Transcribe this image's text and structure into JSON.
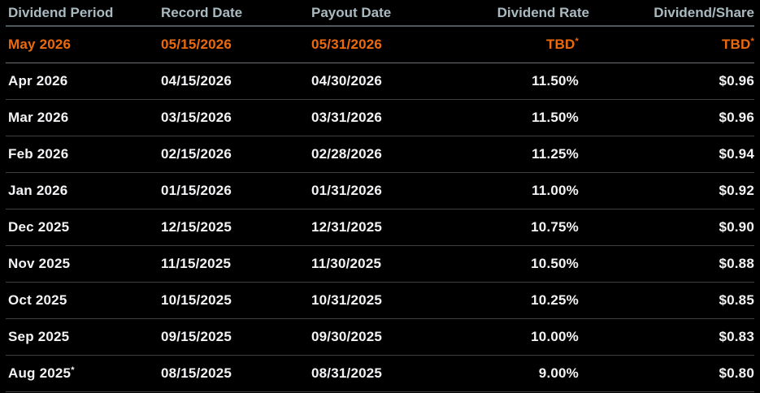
{
  "colors": {
    "background": "#000000",
    "accent_orange": "#ed6a0c",
    "header_text": "#a9bac1",
    "row_text": "#f3f3f5",
    "header_divider": "#4d5a62",
    "row_divider": "#3e4144"
  },
  "header": {
    "columns": [
      "Dividend Period",
      "Record Date",
      "Payout Date",
      "Dividend Rate",
      "Dividend/Share"
    ]
  },
  "rows": [
    {
      "period": "May 2026",
      "record_date": "05/15/2026",
      "payout_date": "05/31/2026",
      "rate": "TBD",
      "rate_sup": "*",
      "share": "TBD",
      "share_sup": "*"
    },
    {
      "period": "Apr 2026",
      "record_date": "04/15/2026",
      "payout_date": "04/30/2026",
      "rate": "11.50%",
      "share": "$0.96"
    },
    {
      "period": "Mar 2026",
      "record_date": "03/15/2026",
      "payout_date": "03/31/2026",
      "rate": "11.50%",
      "share": "$0.96"
    },
    {
      "period": "Feb 2026",
      "record_date": "02/15/2026",
      "payout_date": "02/28/2026",
      "rate": "11.25%",
      "share": "$0.94"
    },
    {
      "period": "Jan 2026",
      "record_date": "01/15/2026",
      "payout_date": "01/31/2026",
      "rate": "11.00%",
      "share": "$0.92"
    },
    {
      "period": "Dec 2025",
      "record_date": "12/15/2025",
      "payout_date": "12/31/2025",
      "rate": "10.75%",
      "share": "$0.90"
    },
    {
      "period": "Nov 2025",
      "record_date": "11/15/2025",
      "payout_date": "11/30/2025",
      "rate": "10.50%",
      "share": "$0.88"
    },
    {
      "period": "Oct 2025",
      "record_date": "10/15/2025",
      "payout_date": "10/31/2025",
      "rate": "10.25%",
      "share": "$0.85"
    },
    {
      "period": "Sep 2025",
      "record_date": "09/15/2025",
      "payout_date": "09/30/2025",
      "rate": "10.00%",
      "share": "$0.83"
    },
    {
      "period": "Aug 2025",
      "period_sup": "*",
      "record_date": "08/15/2025",
      "payout_date": "08/31/2025",
      "rate": "9.00%",
      "share": "$0.80"
    }
  ],
  "chart_data": {
    "type": "table",
    "title": "Dividend schedule",
    "columns": [
      "Dividend Period",
      "Record Date",
      "Payout Date",
      "Dividend Rate",
      "Dividend/Share"
    ],
    "rows": [
      [
        "May 2026",
        "05/15/2026",
        "05/31/2026",
        "TBD*",
        "TBD*"
      ],
      [
        "Apr 2026",
        "04/15/2026",
        "04/30/2026",
        "11.50%",
        "$0.96"
      ],
      [
        "Mar 2026",
        "03/15/2026",
        "03/31/2026",
        "11.50%",
        "$0.96"
      ],
      [
        "Feb 2026",
        "02/15/2026",
        "02/28/2026",
        "11.25%",
        "$0.94"
      ],
      [
        "Jan 2026",
        "01/15/2026",
        "01/31/2026",
        "11.00%",
        "$0.92"
      ],
      [
        "Dec 2025",
        "12/15/2025",
        "12/31/2025",
        "10.75%",
        "$0.90"
      ],
      [
        "Nov 2025",
        "11/15/2025",
        "11/30/2025",
        "10.50%",
        "$0.88"
      ],
      [
        "Oct 2025",
        "10/15/2025",
        "10/31/2025",
        "10.25%",
        "$0.85"
      ],
      [
        "Sep 2025",
        "09/15/2025",
        "09/30/2025",
        "10.00%",
        "$0.83"
      ],
      [
        "Aug 2025*",
        "08/15/2025",
        "08/31/2025",
        "9.00%",
        "$0.80"
      ]
    ],
    "dividend_rate_values_pct": [
      null,
      11.5,
      11.5,
      11.25,
      11.0,
      10.75,
      10.5,
      10.25,
      10.0,
      9.0
    ],
    "dividend_per_share_values_usd": [
      null,
      0.96,
      0.96,
      0.94,
      0.92,
      0.9,
      0.88,
      0.85,
      0.83,
      0.8
    ],
    "highlighted_row": "May 2026",
    "legend_position": "none",
    "grid": "horizontal-row-dividers"
  }
}
